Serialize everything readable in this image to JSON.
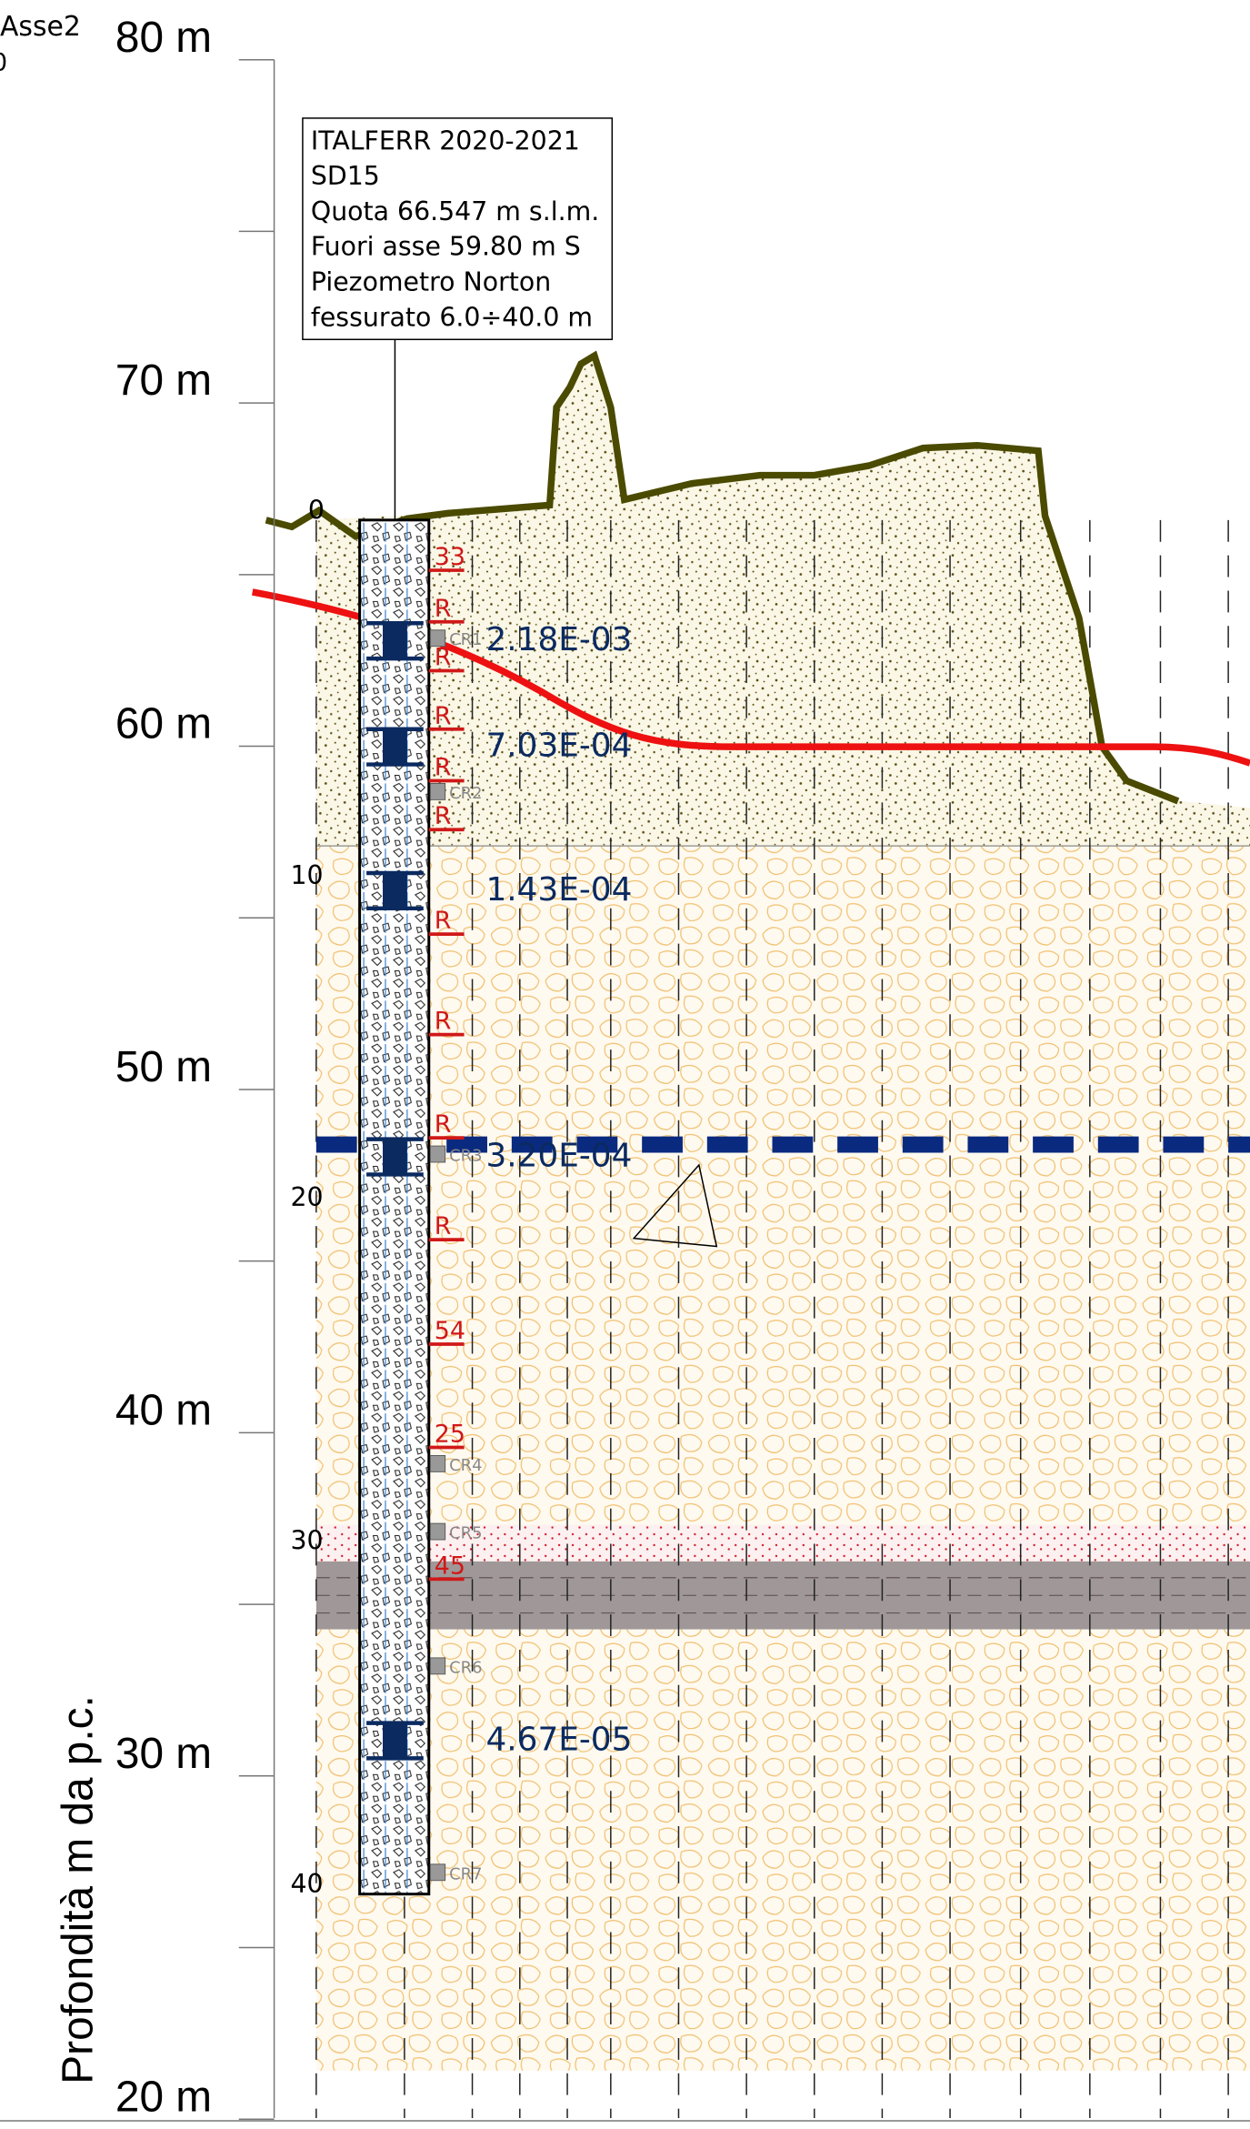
{
  "axis": {
    "title": "Profondità m da p.c.",
    "labels": [
      "80 m",
      "70 m",
      "60 m",
      "50 m",
      "40 m",
      "30 m",
      "20 m"
    ]
  },
  "section": {
    "name": "Asse2",
    "index": "0"
  },
  "borehole": {
    "info": [
      "ITALFERR 2020-2021",
      "SD15",
      "Quota 66.547 m s.l.m.",
      "Fuori asse 59.80 m S",
      "Piezometro Norton",
      "fessurato 6.0÷40.0 m"
    ],
    "depths": [
      "0",
      "10",
      "20",
      "30",
      "40"
    ],
    "spt": [
      "33",
      "R",
      "R",
      "R",
      "R",
      "R",
      "R",
      "R",
      "R",
      "R",
      "54",
      "25",
      "45"
    ],
    "permeability": [
      "2.18E-03",
      "7.03E-04",
      "1.43E-04",
      "3.20E-04",
      "4.67E-05"
    ],
    "samples": [
      "CR1",
      "CR2",
      "CR3",
      "CR4",
      "CR5",
      "CR6",
      "CR7"
    ]
  }
}
